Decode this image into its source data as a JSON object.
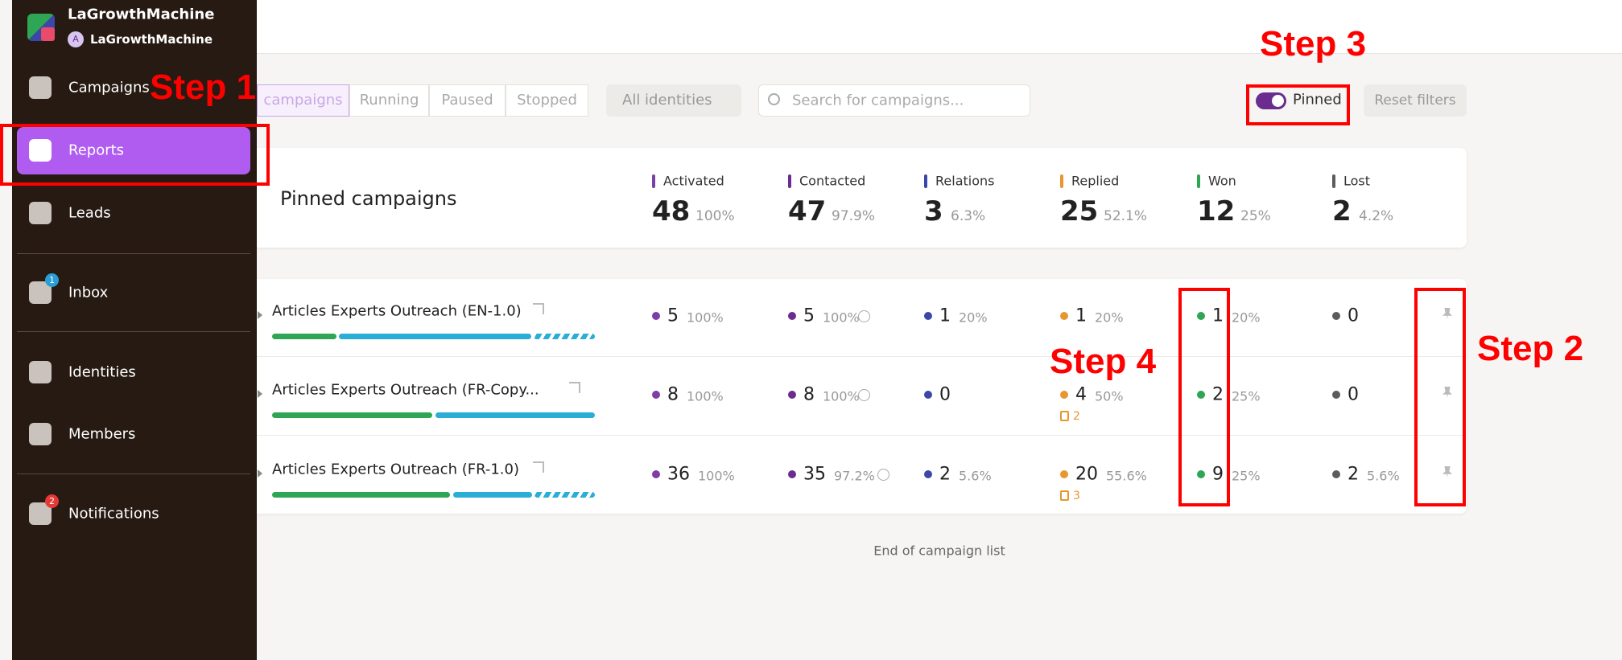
{
  "sidebar": {
    "brand": "LaGrowthMachine",
    "workspace": "LaGrowthMachine",
    "avatar": "A",
    "nav": [
      {
        "label": "Campaigns"
      },
      {
        "label": "Reports",
        "active": true
      },
      {
        "label": "Leads"
      },
      {
        "label": "Inbox",
        "badge": 1
      },
      {
        "label": "Identities"
      },
      {
        "label": "Members"
      },
      {
        "label": "Notifications",
        "badge": 2
      }
    ]
  },
  "filters": {
    "tabs": [
      "campaigns",
      "Running",
      "Paused",
      "Stopped"
    ],
    "identities": "All identities",
    "search": "Search for campaigns...",
    "toggle": "Pinned",
    "reset": "Reset filters"
  },
  "summary": {
    "title": "Pinned campaigns",
    "stats": [
      {
        "label": "Activated",
        "value": 48,
        "percent": "100%",
        "color": "#7b3fa6"
      },
      {
        "label": "Contacted",
        "value": 47,
        "percent": "97.9%",
        "color": "#6a2c8e"
      },
      {
        "label": "Relations",
        "value": 3,
        "percent": "6.3%",
        "color": "#3c48a8"
      },
      {
        "label": "Replied",
        "value": 25,
        "percent": "52.1%",
        "color": "#e8962e"
      },
      {
        "label": "Won",
        "value": 12,
        "percent": "25%",
        "color": "#2ea653"
      },
      {
        "label": "Lost",
        "value": 2,
        "percent": "4.2%",
        "color": "#5c5c5c"
      }
    ]
  },
  "rows": [
    {
      "name": "Articles Experts Outreach (EN-1.0)",
      "stats": [
        {
          "value": 5,
          "percent": "100%"
        },
        {
          "value": 5,
          "percent": "100%"
        },
        {
          "value": 1,
          "percent": "20%"
        },
        {
          "value": 1,
          "percent": "20%"
        },
        {
          "value": 1,
          "percent": "20%"
        },
        {
          "value": 0
        }
      ]
    },
    {
      "name": "Articles Experts Outreach (FR-Copy...",
      "stats": [
        {
          "value": 8,
          "percent": "100%"
        },
        {
          "value": 8,
          "percent": "100%"
        },
        {
          "value": 0
        },
        {
          "value": 4,
          "percent": "50%",
          "tasks": 2
        },
        {
          "value": 2,
          "percent": "25%"
        },
        {
          "value": 0
        }
      ]
    },
    {
      "name": "Articles Experts Outreach (FR-1.0)",
      "stats": [
        {
          "value": 36,
          "percent": "100%"
        },
        {
          "value": 35,
          "percent": "97.2%"
        },
        {
          "value": 2,
          "percent": "5.6%"
        },
        {
          "value": 20,
          "percent": "55.6%",
          "tasks": 3
        },
        {
          "value": 9,
          "percent": "25%"
        },
        {
          "value": 2,
          "percent": "5.6%"
        }
      ]
    }
  ],
  "footer": "End of campaign list",
  "annotations": [
    "Step 1",
    "Step 2",
    "Step 3",
    "Step 4"
  ]
}
